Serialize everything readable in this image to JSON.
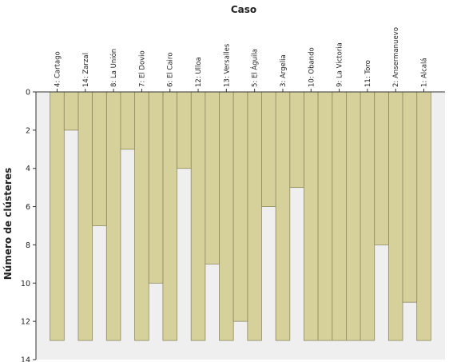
{
  "chart_data": {
    "type": "icicle",
    "title": "Caso",
    "ylabel": "Número de clústeres",
    "ylim": [
      0,
      14
    ],
    "yticks": [
      0,
      2,
      4,
      6,
      8,
      10,
      12,
      14
    ],
    "max_clusters": 13,
    "cases": [
      "4: Cartago",
      "14: Zarzal",
      "8: La Unión",
      "7: El Dovio",
      "6: El Cairo",
      "12: Ulloa",
      "13: Versalles",
      "5: El Águila",
      "3: Argelia",
      "10: Obando",
      "9: La Victoria",
      "11: Toro",
      "2: Ansermanuevo",
      "1: Alcalá"
    ],
    "join_levels": [
      2,
      7,
      3,
      10,
      4,
      9,
      12,
      6,
      5,
      13,
      13,
      8,
      11,
      1
    ],
    "colors": {
      "fill": "#d6d09b",
      "stroke": "#8e8a60",
      "background": "#efefef",
      "axis": "#333333"
    }
  }
}
